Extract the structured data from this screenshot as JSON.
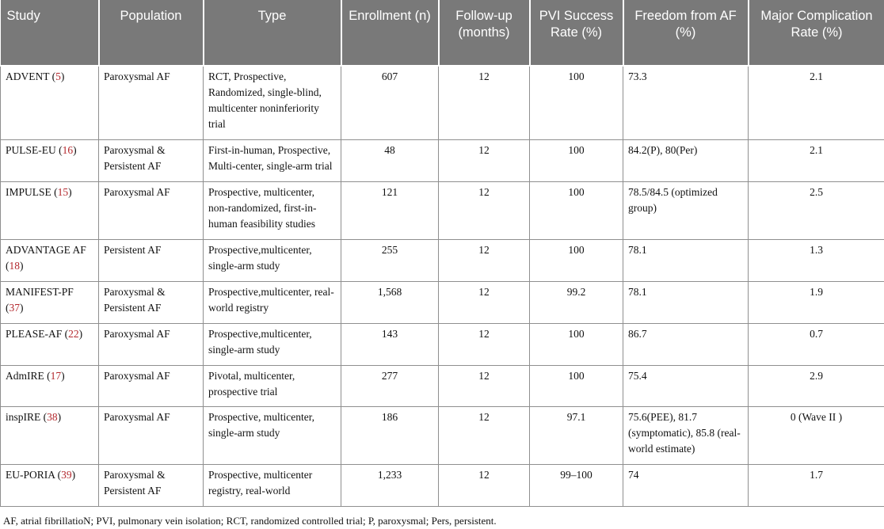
{
  "table": {
    "columns": [
      {
        "key": "study",
        "label": "Study"
      },
      {
        "key": "population",
        "label": "Population"
      },
      {
        "key": "type",
        "label": "Type"
      },
      {
        "key": "enrollment",
        "label": "Enrollment (n)"
      },
      {
        "key": "followup",
        "label": "Follow-up (months)"
      },
      {
        "key": "pvi",
        "label": "PVI Success Rate (%)"
      },
      {
        "key": "freedom",
        "label": "Freedom from AF (%)"
      },
      {
        "key": "complication",
        "label": "Major Complication Rate (%)"
      }
    ],
    "rows": [
      {
        "study": "ADVENT",
        "ref": "5",
        "population": "Paroxysmal AF",
        "type": "RCT, Prospective, Randomized, single-blind, multicenter noninferiority trial",
        "enrollment": "607",
        "followup": "12",
        "pvi": "100",
        "freedom": "73.3",
        "complication": "2.1"
      },
      {
        "study": "PULSE-EU",
        "ref": "16",
        "population": "Paroxysmal & Persistent AF",
        "type": "First-in-human, Prospective, Multi-center, single-arm trial",
        "enrollment": "48",
        "followup": "12",
        "pvi": "100",
        "freedom": "84.2(P), 80(Per)",
        "complication": "2.1"
      },
      {
        "study": "IMPULSE",
        "ref": "15",
        "population": "Paroxysmal AF",
        "type": "Prospective, multicenter, non-randomized, first-in-human feasibility studies",
        "enrollment": "121",
        "followup": "12",
        "pvi": "100",
        "freedom": "78.5/84.5 (optimized group)",
        "complication": "2.5"
      },
      {
        "study": "ADVANTAGE AF",
        "ref": "18",
        "population": "Persistent AF",
        "type": "Prospective,multicenter, single-arm study",
        "enrollment": "255",
        "followup": "12",
        "pvi": "100",
        "freedom": "78.1",
        "complication": "1.3"
      },
      {
        "study": "MANIFEST-PF",
        "ref": "37",
        "population": "Paroxysmal & Persistent AF",
        "type": "Prospective,multicenter, real-world registry",
        "enrollment": "1,568",
        "followup": "12",
        "pvi": "99.2",
        "freedom": "78.1",
        "complication": "1.9"
      },
      {
        "study": "PLEASE-AF",
        "ref": "22",
        "population": "Paroxysmal AF",
        "type": "Prospective,multicenter, single-arm study",
        "enrollment": "143",
        "followup": "12",
        "pvi": "100",
        "freedom": "86.7",
        "complication": "0.7"
      },
      {
        "study": "AdmIRE",
        "ref": "17",
        "population": "Paroxysmal AF",
        "type": "Pivotal, multicenter, prospective trial",
        "enrollment": "277",
        "followup": "12",
        "pvi": "100",
        "freedom": "75.4",
        "complication": "2.9"
      },
      {
        "study": "inspIRE",
        "ref": "38",
        "population": "Paroxysmal AF",
        "type": "Prospective, multicenter, single-arm study",
        "enrollment": "186",
        "followup": "12",
        "pvi": "97.1",
        "freedom": "75.6(PEE), 81.7 (symptomatic), 85.8 (real-world estimate)",
        "complication": "0 (Wave II )"
      },
      {
        "study": "EU-PORIA",
        "ref": "39",
        "population": "Paroxysmal & Persistent AF",
        "type": "Prospective, multicenter registry, real-world",
        "enrollment": "1,233",
        "followup": "12",
        "pvi": "99–100",
        "freedom": "74",
        "complication": "1.7"
      }
    ],
    "footnote": "AF, atrial fibrillatioN; PVI, pulmonary vein isolation; RCT, randomized controlled trial; P, paroxysmal; Pers, persistent."
  },
  "colors": {
    "header_bg": "#797979",
    "header_text": "#ffffff",
    "cell_border": "#8f8f8f",
    "citation_red": "#b3282d"
  }
}
